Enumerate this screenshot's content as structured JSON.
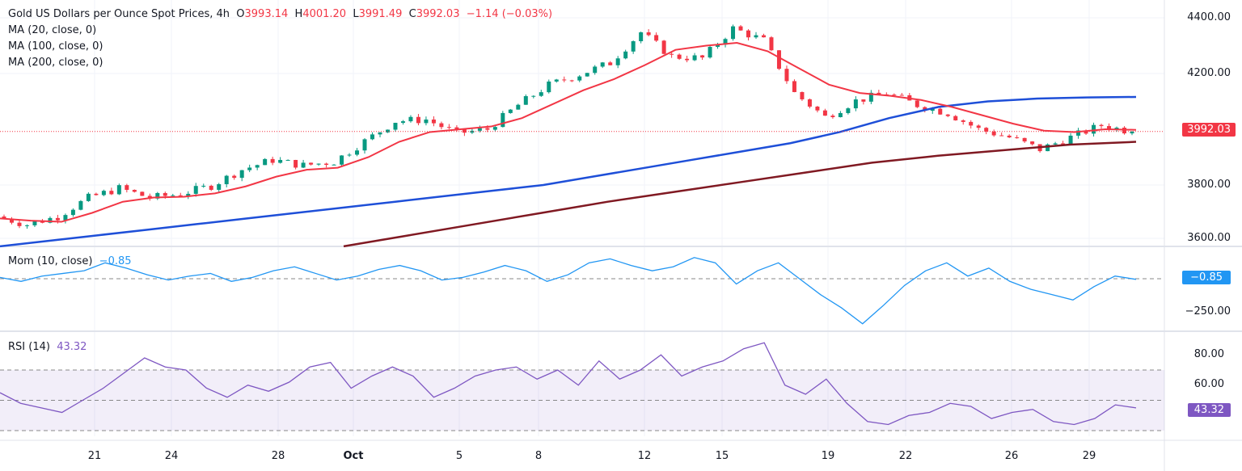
{
  "header": {
    "title": "Gold US Dollars per Ounce Spot Prices, 4h",
    "o_label": "O",
    "o": "3993.14",
    "h_label": "H",
    "h": "4001.20",
    "l_label": "L",
    "l": "3991.49",
    "c_label": "C",
    "c": "3992.03",
    "change": "−1.14 (−0.03%)"
  },
  "indicators": {
    "ma20": "MA (20, close, 0)",
    "ma100": "MA (100, close, 0)",
    "ma200": "MA (200, close, 0)",
    "mom": "Mom (10, close)",
    "mom_value": "−0.85",
    "rsi": "RSI (14)",
    "rsi_value": "43.32"
  },
  "colors": {
    "up": "#089981",
    "down": "#f23645",
    "ma20": "#f23645",
    "ma100": "#1e4fd8",
    "ma200": "#801922",
    "mom": "#2196f3",
    "rsi": "#7e57c2"
  },
  "chart_data": [
    {
      "type": "candlestick",
      "title": "Gold US Dollars per Ounce Spot Prices, 4h",
      "y_ticks": [
        "4400.00",
        "4200.00",
        "3800.00",
        "3600.00"
      ],
      "ylim": [
        3580,
        4450
      ],
      "last_price": "3992.03",
      "x_ticks": [
        "21",
        "24",
        "28",
        "Oct",
        "5",
        "8",
        "12",
        "15",
        "19",
        "22",
        "26",
        "29"
      ],
      "close_path": [
        3687,
        3658,
        3687,
        3754,
        3788,
        3754,
        3768,
        3797,
        3855,
        3890,
        3870,
        3884,
        3957,
        4029,
        4035,
        3986,
        4000,
        4087,
        4159,
        4197,
        4238,
        4348,
        4261,
        4255,
        4362,
        4319,
        4130,
        4044,
        4102,
        4130,
        4087,
        4058,
        4000,
        3971,
        3928,
        3971,
        4014,
        3992
      ],
      "series": [
        {
          "name": "MA (20, close, 0)",
          "values": [
            3680,
            3672,
            3668,
            3700,
            3740,
            3755,
            3758,
            3770,
            3795,
            3830,
            3855,
            3862,
            3900,
            3955,
            3990,
            4000,
            4010,
            4040,
            4090,
            4140,
            4180,
            4230,
            4285,
            4300,
            4310,
            4280,
            4220,
            4160,
            4130,
            4120,
            4105,
            4080,
            4050,
            4020,
            3995,
            3990,
            4000,
            3998
          ]
        },
        {
          "name": "MA (100, close, 0)",
          "values": [
            3580,
            3600,
            3620,
            3640,
            3660,
            3680,
            3700,
            3720,
            3740,
            3760,
            3780,
            3800,
            3830,
            3860,
            3890,
            3920,
            3950,
            3990,
            4040,
            4080,
            4100,
            4110,
            4114,
            4116
          ]
        },
        {
          "name": "MA (200, close, 0)",
          "values": [
            3580,
            3620,
            3660,
            3700,
            3740,
            3775,
            3810,
            3845,
            3880,
            3905,
            3925,
            3945,
            3955
          ]
        }
      ]
    },
    {
      "type": "line",
      "title": "Mom (10, close)",
      "y_ticks": [
        "−250.00"
      ],
      "last_value": "−0.85",
      "values": [
        10,
        -20,
        20,
        40,
        60,
        120,
        80,
        30,
        -10,
        20,
        40,
        -20,
        10,
        60,
        90,
        40,
        -10,
        20,
        70,
        100,
        60,
        -10,
        10,
        50,
        100,
        60,
        -20,
        30,
        120,
        150,
        100,
        60,
        90,
        160,
        120,
        -40,
        60,
        120,
        0,
        -120,
        -220,
        -340,
        -200,
        -50,
        60,
        120,
        20,
        80,
        -20,
        -80,
        -120,
        -160,
        -60,
        20,
        -5
      ]
    },
    {
      "type": "line",
      "title": "RSI (14)",
      "y_ticks": [
        "80.00",
        "60.00"
      ],
      "last_value": "43.32",
      "bands": [
        70,
        50,
        30
      ],
      "values": [
        55,
        48,
        45,
        42,
        50,
        58,
        68,
        78,
        72,
        70,
        58,
        52,
        60,
        56,
        62,
        72,
        75,
        58,
        66,
        72,
        66,
        52,
        58,
        66,
        70,
        72,
        64,
        70,
        60,
        76,
        64,
        70,
        80,
        66,
        72,
        76,
        84,
        88,
        60,
        54,
        64,
        48,
        36,
        34,
        40,
        42,
        48,
        46,
        38,
        42,
        44,
        36,
        34,
        38,
        47,
        45
      ]
    }
  ]
}
